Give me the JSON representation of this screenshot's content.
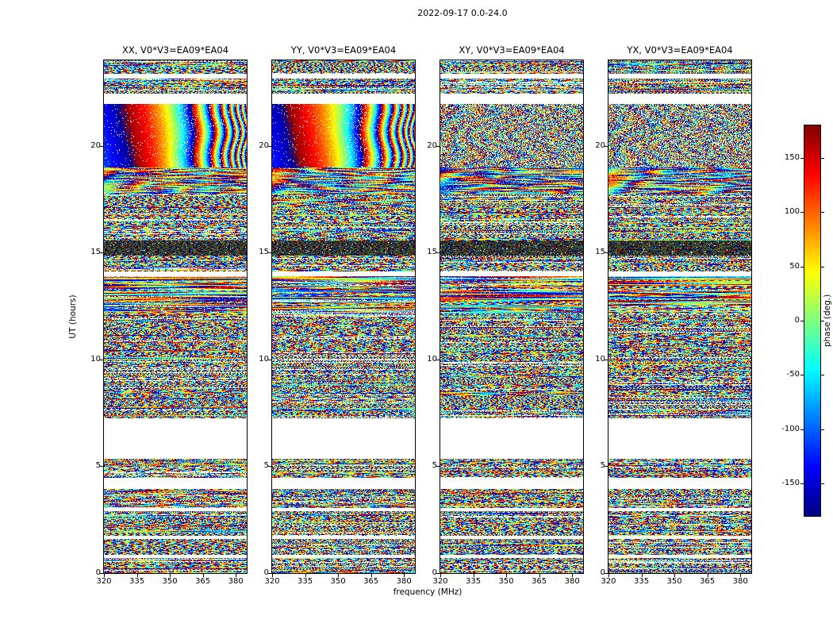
{
  "figure": {
    "title": "2022-09-17 0.0-24.0",
    "xlabel": "frequency (MHz)",
    "ylabel": "UT (hours)",
    "colorbar_label": "phase (deg.)"
  },
  "chart_data": {
    "type": "heatmap",
    "title": "2022-09-17 0.0-24.0",
    "panels": [
      {
        "pol": "XX",
        "title": "XX, V0*V3=EA09*EA04",
        "cal_style": "smooth"
      },
      {
        "pol": "YY",
        "title": "YY, V0*V3=EA09*EA04",
        "cal_style": "smooth"
      },
      {
        "pol": "XY",
        "title": "XY, V0*V3=EA09*EA04",
        "cal_style": "fringe"
      },
      {
        "pol": "YX",
        "title": "YX, V0*V3=EA09*EA04",
        "cal_style": "fringe"
      }
    ],
    "x_axis": {
      "label": "frequency (MHz)",
      "unit": "MHz",
      "lim": [
        320,
        385
      ],
      "ticks": [
        320,
        335,
        350,
        365,
        380
      ]
    },
    "y_axis": {
      "label": "UT (hours)",
      "unit": "hours",
      "lim": [
        0,
        24
      ],
      "ticks": [
        0,
        5,
        10,
        15,
        20
      ]
    },
    "colorbar": {
      "label": "phase (deg.)",
      "lim": [
        -180,
        180
      ],
      "ticks": [
        -150,
        -100,
        -50,
        0,
        50,
        100,
        150
      ],
      "colormap": "jet"
    },
    "time_bands": [
      {
        "ut": [
          23.35,
          24.0
        ],
        "type": "noise"
      },
      {
        "ut": [
          23.15,
          23.35
        ],
        "type": "blank"
      },
      {
        "ut": [
          22.45,
          23.15
        ],
        "type": "noise"
      },
      {
        "ut": [
          21.95,
          22.45
        ],
        "type": "blank"
      },
      {
        "ut": [
          19.0,
          21.95
        ],
        "type": "calibrator"
      },
      {
        "ut": [
          17.75,
          19.0
        ],
        "type": "blobs"
      },
      {
        "ut": [
          15.55,
          17.75
        ],
        "type": "noise"
      },
      {
        "ut": [
          14.85,
          15.55
        ],
        "type": "dense-dark"
      },
      {
        "ut": [
          14.1,
          14.85
        ],
        "type": "noise"
      },
      {
        "ut": [
          13.9,
          14.1
        ],
        "type": "blank"
      },
      {
        "ut": [
          12.15,
          13.9
        ],
        "type": "streaks"
      },
      {
        "ut": [
          7.25,
          12.15
        ],
        "type": "noise"
      },
      {
        "ut": [
          5.35,
          7.25
        ],
        "type": "blank"
      },
      {
        "ut": [
          4.45,
          5.35
        ],
        "type": "noise"
      },
      {
        "ut": [
          3.95,
          4.45
        ],
        "type": "blank"
      },
      {
        "ut": [
          3.05,
          3.95
        ],
        "type": "noise"
      },
      {
        "ut": [
          2.9,
          3.05
        ],
        "type": "blank"
      },
      {
        "ut": [
          1.75,
          2.9
        ],
        "type": "noise"
      },
      {
        "ut": [
          1.6,
          1.75
        ],
        "type": "blank"
      },
      {
        "ut": [
          0.85,
          1.6
        ],
        "type": "noise"
      },
      {
        "ut": [
          0.72,
          0.85
        ],
        "type": "blank"
      },
      {
        "ut": [
          0.0,
          0.72
        ],
        "type": "noise"
      }
    ]
  }
}
